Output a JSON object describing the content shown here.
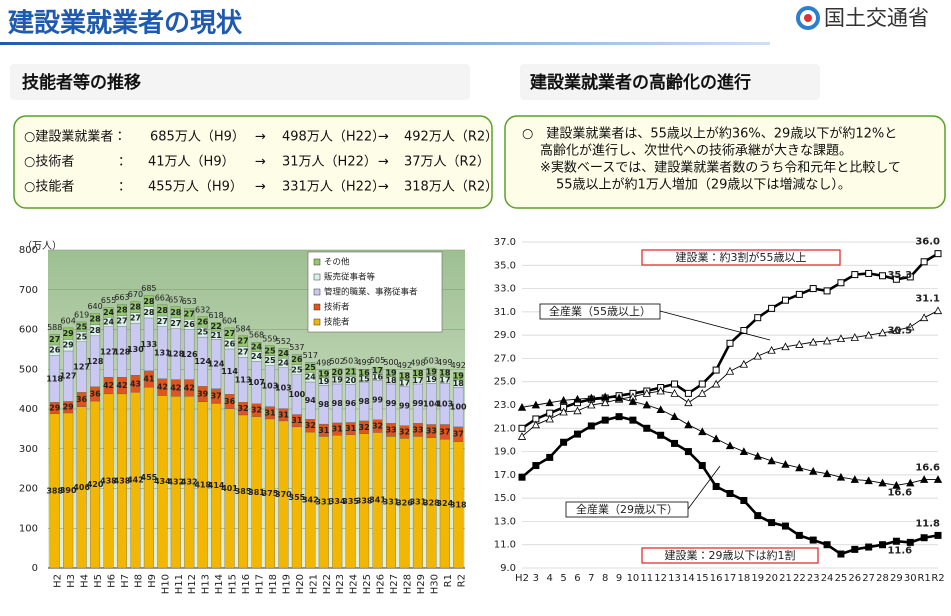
{
  "header": {
    "title": "建設業就業者の現状",
    "logo": "国土交通省"
  },
  "left_panel": {
    "heading": "技能者等の推移",
    "rows": [
      [
        "○建設業就業者：",
        "685万人（H9）",
        "→",
        "498万人（H22）",
        "→",
        "492万人（R2）"
      ],
      [
        "○技術者",
        "：",
        "41万人（H9）",
        "→",
        "31万人（H22）",
        "→",
        "37万人（R2）"
      ],
      [
        "○技能者",
        "：",
        "455万人（H9）",
        "→",
        "331万人（H22）",
        "→",
        "318万人（R2）"
      ]
    ]
  },
  "right_panel": {
    "heading": "建設業就業者の高齢化の進行",
    "lines": [
      "○　建設業就業者は、55歳以上が約36%、29歳以下が約12%と",
      "高齢化が進行し、次世代への技術承継が大きな課題。",
      "※実数ベースでは、建設業就業者数のうち令和元年と比較して",
      "55歳以上が約1万人増加（29歳以下は増減なし）。"
    ]
  },
  "chart_data": [
    {
      "type": "stacked_bar",
      "y_label": "（万人）",
      "categories": [
        "H2",
        "H3",
        "H4",
        "H5",
        "H6",
        "H7",
        "H8",
        "H9",
        "H10",
        "H11",
        "H12",
        "H13",
        "H14",
        "H15",
        "H16",
        "H17",
        "H18",
        "H19",
        "H20",
        "H21",
        "H22",
        "H23",
        "H24",
        "H25",
        "H26",
        "H27",
        "H28",
        "H29",
        "H30",
        "R1",
        "R2"
      ],
      "ylim": [
        0,
        800
      ],
      "yticks": [
        0,
        100,
        200,
        300,
        400,
        500,
        600,
        700,
        800
      ],
      "grid": true,
      "series": [
        {
          "name": "技能者",
          "color": "#f2b705",
          "values": [
            388,
            390,
            406,
            420,
            438,
            438,
            442,
            455,
            434,
            432,
            432,
            418,
            414,
            401,
            385,
            381,
            375,
            370,
            355,
            342,
            331,
            334,
            335,
            338,
            341,
            331,
            326,
            331,
            328,
            324,
            318
          ]
        },
        {
          "name": "技術者",
          "color": "#e0541e",
          "values": [
            29,
            29,
            36,
            36,
            42,
            42,
            43,
            41,
            42,
            42,
            42,
            39,
            37,
            36,
            32,
            32,
            31,
            31,
            31,
            32,
            31,
            31,
            31,
            32,
            32,
            33,
            32,
            33,
            33,
            37,
            37
          ]
        },
        {
          "name": "管理的職業、事務従事者",
          "color": "#c9c9f2",
          "values": [
            118,
            127,
            127,
            128,
            127,
            128,
            130,
            133,
            131,
            128,
            126,
            124,
            124,
            114,
            113,
            107,
            103,
            103,
            100,
            94,
            98,
            98,
            96,
            98,
            99,
            99,
            99,
            99,
            104,
            103,
            100
          ]
        },
        {
          "name": "販売従事者等",
          "color": "#d9f2e9",
          "values": [
            26,
            29,
            25,
            28,
            24,
            27,
            27,
            28,
            27,
            27,
            26,
            25,
            21,
            26,
            27,
            24,
            25,
            24,
            25,
            24,
            19,
            19,
            20,
            15,
            16,
            18,
            17,
            17,
            19,
            17,
            18
          ]
        },
        {
          "name": "その他",
          "color": "#93c86e",
          "values": [
            27,
            29,
            25,
            28,
            24,
            28,
            28,
            28,
            28,
            28,
            27,
            26,
            22,
            27,
            27,
            24,
            25,
            24,
            26,
            25,
            19,
            20,
            21,
            16,
            17,
            19,
            18,
            18,
            19,
            18,
            19
          ]
        }
      ],
      "total_labels": [
        588,
        604,
        619,
        640,
        655,
        663,
        670,
        685,
        662,
        657,
        653,
        632,
        618,
        604,
        584,
        568,
        559,
        552,
        537,
        517,
        498,
        502,
        503,
        499,
        505,
        500,
        492,
        498,
        503,
        499,
        492
      ]
    },
    {
      "type": "line",
      "categories": [
        "H2",
        "3",
        "4",
        "5",
        "6",
        "7",
        "8",
        "9",
        "10",
        "11",
        "12",
        "13",
        "14",
        "15",
        "16",
        "17",
        "18",
        "19",
        "20",
        "21",
        "22",
        "23",
        "24",
        "25",
        "26",
        "27",
        "28",
        "29",
        "30",
        "R1",
        "R2"
      ],
      "ylim": [
        9,
        37
      ],
      "yticks": [
        {
          "value": 9,
          "label": "9.0"
        },
        {
          "value": 11,
          "label": "11.0"
        },
        {
          "value": 13,
          "label": "13.0"
        },
        {
          "value": 15,
          "label": "15.0"
        },
        {
          "value": 17,
          "label": "17.0"
        },
        {
          "value": 19,
          "label": "19.0"
        },
        {
          "value": 21,
          "label": "21.0"
        },
        {
          "value": 23,
          "label": "23.0"
        },
        {
          "value": 25,
          "label": "25.0"
        },
        {
          "value": 27,
          "label": "27.0"
        },
        {
          "value": 29,
          "label": "29.0"
        },
        {
          "value": 31,
          "label": "31.0"
        },
        {
          "value": 33,
          "label": "33.0"
        },
        {
          "value": 35,
          "label": "35.0"
        },
        {
          "value": 37,
          "label": "37.0"
        }
      ],
      "grid": true,
      "series": [
        {
          "name": "建設業：約3割が55歳以上",
          "color": "#000000",
          "marker": "square",
          "filled": false,
          "highlight": true,
          "values": [
            21.0,
            21.8,
            22.3,
            22.8,
            23.2,
            23.5,
            23.6,
            23.8,
            24.0,
            24.2,
            24.5,
            24.8,
            24.0,
            24.8,
            26.0,
            28.3,
            29.4,
            30.5,
            31.3,
            32.0,
            32.5,
            33.0,
            32.8,
            33.5,
            34.2,
            34.3,
            34.1,
            33.8,
            34.0,
            35.3,
            36.0
          ],
          "value_labels": [
            null,
            null,
            null,
            null,
            null,
            null,
            null,
            null,
            null,
            null,
            null,
            null,
            null,
            null,
            null,
            null,
            null,
            null,
            null,
            null,
            null,
            null,
            null,
            null,
            null,
            null,
            null,
            null,
            null,
            "35.3",
            "36.0"
          ]
        },
        {
          "name": "全産業（55歳以上）",
          "color": "#000000",
          "marker": "triangle",
          "filled": false,
          "highlight": false,
          "values": [
            20.3,
            21.3,
            21.8,
            22.4,
            22.5,
            23.0,
            23.2,
            23.5,
            23.7,
            24.0,
            24.2,
            24.0,
            23.2,
            24.0,
            24.8,
            25.9,
            26.5,
            27.2,
            27.7,
            28.0,
            28.2,
            28.4,
            28.5,
            28.7,
            28.8,
            29.0,
            29.2,
            29.4,
            29.7,
            30.5,
            31.1
          ],
          "value_labels": [
            null,
            null,
            null,
            null,
            null,
            null,
            null,
            null,
            null,
            null,
            null,
            null,
            null,
            null,
            null,
            null,
            null,
            null,
            null,
            null,
            null,
            null,
            null,
            null,
            null,
            null,
            null,
            null,
            null,
            "30.5",
            "31.1"
          ]
        },
        {
          "name": "全産業（29歳以下）",
          "color": "#000000",
          "marker": "triangle",
          "filled": true,
          "highlight": false,
          "values": [
            22.8,
            23.0,
            23.2,
            23.4,
            23.5,
            23.6,
            23.7,
            23.6,
            23.3,
            23.0,
            22.6,
            22.0,
            21.3,
            20.7,
            20.1,
            19.5,
            19.0,
            18.6,
            18.2,
            17.9,
            17.6,
            17.3,
            17.1,
            16.8,
            16.6,
            16.5,
            16.3,
            16.1,
            16.3,
            16.6,
            16.6
          ],
          "value_labels": [
            null,
            null,
            null,
            null,
            null,
            null,
            null,
            null,
            null,
            null,
            null,
            null,
            null,
            null,
            null,
            null,
            null,
            null,
            null,
            null,
            null,
            null,
            null,
            null,
            null,
            null,
            null,
            null,
            null,
            "16.6",
            "16.6"
          ]
        },
        {
          "name": "建設業：29歳以下は約1割",
          "color": "#000000",
          "marker": "square",
          "filled": true,
          "highlight": true,
          "values": [
            16.8,
            17.8,
            18.5,
            19.8,
            20.5,
            21.2,
            21.7,
            22.0,
            21.7,
            21.0,
            20.4,
            19.7,
            19.0,
            17.8,
            16.0,
            15.4,
            14.8,
            13.5,
            12.9,
            12.6,
            11.8,
            11.4,
            11.0,
            10.2,
            10.6,
            10.8,
            11.0,
            11.3,
            11.2,
            11.6,
            11.8
          ],
          "value_labels": [
            null,
            null,
            null,
            null,
            null,
            null,
            null,
            null,
            null,
            null,
            null,
            null,
            null,
            null,
            null,
            null,
            null,
            null,
            null,
            null,
            null,
            null,
            null,
            null,
            null,
            null,
            null,
            null,
            null,
            "11.6",
            "11.8"
          ]
        }
      ]
    }
  ]
}
